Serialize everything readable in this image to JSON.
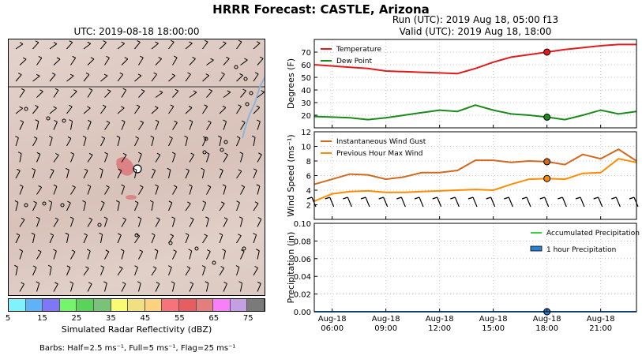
{
  "header": {
    "title": "HRRR Forecast: CASTLE, Arizona",
    "map_title": "UTC: 2019-08-18 18:00:00",
    "run_line": "Run (UTC): 2019 Aug 18, 05:00 f13",
    "valid_line": "Valid (UTC): 2019 Aug 18, 18:00"
  },
  "colorbar": {
    "label": "Simulated Radar Reflectivity (dBZ)",
    "ticks": [
      "5",
      "15",
      "25",
      "35",
      "45",
      "55",
      "65",
      "75"
    ],
    "colors": [
      "#7ff2fa",
      "#5fb2f5",
      "#7f77f5",
      "#74f56d",
      "#5bd35a",
      "#7ac27a",
      "#fbfb73",
      "#f0e07f",
      "#fad280",
      "#f5747a",
      "#e65e61",
      "#e27f7d",
      "#f97ef9",
      "#c4a0e3",
      "#7a7a7a"
    ]
  },
  "barbs_note": "Barbs: Half=2.5 ms⁻¹, Full=5 ms⁻¹, Flag=25 ms⁻¹",
  "chart_data": [
    {
      "type": "line",
      "ylabel": "Degrees (F)",
      "ylim": [
        10,
        80
      ],
      "yticks": [
        20,
        30,
        40,
        50,
        60,
        70
      ],
      "x": [
        "05:00",
        "06:00",
        "07:00",
        "08:00",
        "09:00",
        "10:00",
        "11:00",
        "12:00",
        "13:00",
        "14:00",
        "15:00",
        "16:00",
        "17:00",
        "18:00",
        "19:00",
        "20:00",
        "21:00",
        "22:00",
        "23:00"
      ],
      "series": [
        {
          "name": "Temperature",
          "color": "#e31a1c",
          "values": [
            60,
            59,
            58,
            57,
            55,
            54.5,
            54,
            53.5,
            53,
            57,
            62,
            66,
            68,
            70,
            72,
            73.5,
            75,
            76,
            76
          ]
        },
        {
          "name": "Dew Point",
          "color": "#1a8a1a",
          "values": [
            19,
            18.5,
            18,
            16.5,
            18,
            20,
            22,
            24,
            23,
            28,
            24,
            21,
            20,
            18.5,
            16.5,
            20,
            24,
            21,
            23
          ]
        }
      ],
      "legend": "top-left",
      "grid": true
    },
    {
      "type": "line",
      "ylabel": "Wind Speed (ms⁻¹)",
      "ylim": [
        0,
        12
      ],
      "yticks": [
        2,
        4,
        6,
        8,
        10,
        12
      ],
      "x": [
        "05:00",
        "06:00",
        "07:00",
        "08:00",
        "09:00",
        "10:00",
        "11:00",
        "12:00",
        "13:00",
        "14:00",
        "15:00",
        "16:00",
        "17:00",
        "18:00",
        "19:00",
        "20:00",
        "21:00",
        "22:00",
        "23:00"
      ],
      "series": [
        {
          "name": "Instantaneous Wind Gust",
          "color": "#d2691e",
          "values": [
            4.8,
            5.5,
            6.2,
            6.1,
            5.5,
            5.8,
            6.4,
            6.4,
            6.7,
            8.1,
            8.1,
            7.8,
            8.0,
            7.9,
            7.5,
            8.9,
            8.3,
            9.6,
            8.0
          ]
        },
        {
          "name": "Previous Hour Max Wind",
          "color": "#ff8c00",
          "values": [
            2.5,
            3.5,
            3.8,
            3.9,
            3.7,
            3.7,
            3.8,
            3.9,
            4.0,
            4.1,
            4.0,
            4.8,
            5.5,
            5.6,
            5.5,
            6.3,
            6.4,
            8.3,
            7.8
          ]
        }
      ],
      "legend": "top-left",
      "grid": true
    },
    {
      "type": "line",
      "ylabel": "Precipitation (in)",
      "ylim": [
        0,
        0.1
      ],
      "yticks": [
        "0.00",
        "0.02",
        "0.04",
        "0.06",
        "0.08",
        "0.10"
      ],
      "x": [
        "05:00",
        "06:00",
        "07:00",
        "08:00",
        "09:00",
        "10:00",
        "11:00",
        "12:00",
        "13:00",
        "14:00",
        "15:00",
        "16:00",
        "17:00",
        "18:00",
        "19:00",
        "20:00",
        "21:00",
        "22:00",
        "23:00"
      ],
      "series": [
        {
          "name": "Accumulated Precipitation",
          "color": "#3ad13a",
          "values": [
            0,
            0,
            0,
            0,
            0,
            0,
            0,
            0,
            0,
            0,
            0,
            0,
            0,
            0,
            0,
            0,
            0,
            0,
            0
          ]
        },
        {
          "name": "1 hour Precipitation",
          "color": "#2b7fd4",
          "values": [
            0,
            0,
            0,
            0,
            0,
            0,
            0,
            0,
            0,
            0,
            0,
            0,
            0,
            0,
            0,
            0,
            0,
            0,
            0
          ]
        }
      ],
      "legend": "top-right",
      "grid": true,
      "xtick_labels": [
        {
          "line1": "Aug-18",
          "line2": "06:00"
        },
        {
          "line1": "Aug-18",
          "line2": "09:00"
        },
        {
          "line1": "Aug-18",
          "line2": "12:00"
        },
        {
          "line1": "Aug-18",
          "line2": "15:00"
        },
        {
          "line1": "Aug-18",
          "line2": "18:00"
        },
        {
          "line1": "Aug-18",
          "line2": "21:00"
        }
      ]
    }
  ]
}
